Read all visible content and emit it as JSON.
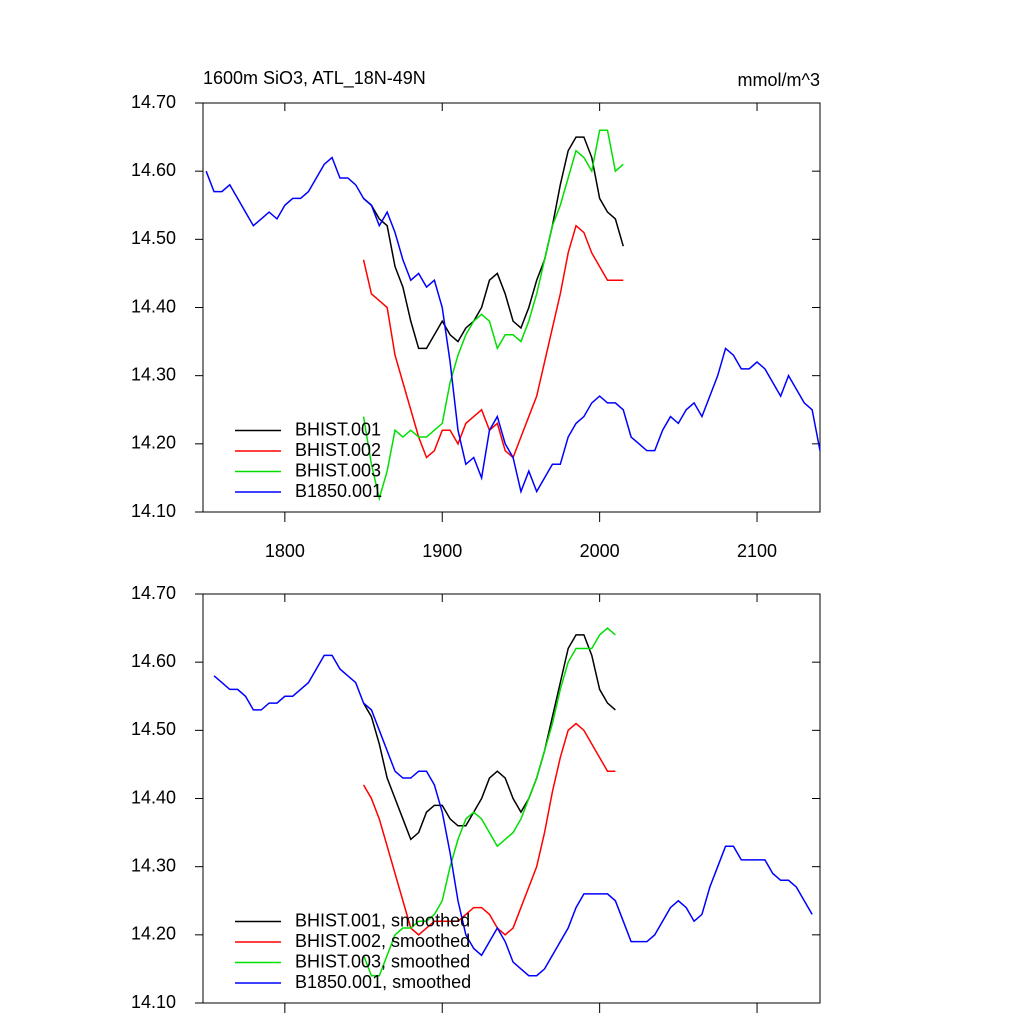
{
  "chart_data": [
    {
      "type": "line",
      "title": "1600m SiO3, ATL_18N-49N",
      "units": "mmol/m^3",
      "x": [
        1750,
        1755,
        1760,
        1765,
        1770,
        1775,
        1780,
        1785,
        1790,
        1795,
        1800,
        1805,
        1810,
        1815,
        1820,
        1825,
        1830,
        1835,
        1840,
        1845,
        1850,
        1855,
        1860,
        1865,
        1870,
        1875,
        1880,
        1885,
        1890,
        1895,
        1900,
        1905,
        1910,
        1915,
        1920,
        1925,
        1930,
        1935,
        1940,
        1945,
        1950,
        1955,
        1960,
        1965,
        1970,
        1975,
        1980,
        1985,
        1990,
        1995,
        2000,
        2005,
        2010,
        2015,
        2020,
        2025,
        2030,
        2035,
        2040,
        2045,
        2050,
        2055,
        2060,
        2065,
        2070,
        2075,
        2080,
        2085,
        2090,
        2095,
        2100,
        2105,
        2110,
        2115,
        2120,
        2125,
        2130,
        2135,
        2140
      ],
      "xlim": [
        1748,
        2140
      ],
      "xticks": [
        1800,
        1900,
        2000,
        2100
      ],
      "ylim": [
        14.1,
        14.7
      ],
      "yticks": [
        {
          "value": 14.1,
          "label": "14.10"
        },
        {
          "value": 14.2,
          "label": "14.20"
        },
        {
          "value": 14.3,
          "label": "14.30"
        },
        {
          "value": 14.4,
          "label": "14.40"
        },
        {
          "value": 14.5,
          "label": "14.50"
        },
        {
          "value": 14.6,
          "label": "14.60"
        },
        {
          "value": 14.7,
          "label": "14.70"
        }
      ],
      "legend": "lower left",
      "series": [
        {
          "name": "BHIST.001",
          "color": "#000000",
          "values": [
            null,
            null,
            null,
            null,
            null,
            null,
            null,
            null,
            null,
            null,
            null,
            null,
            null,
            null,
            null,
            null,
            null,
            null,
            null,
            null,
            14.56,
            14.55,
            14.53,
            14.52,
            14.46,
            14.43,
            14.38,
            14.34,
            14.34,
            14.36,
            14.38,
            14.36,
            14.35,
            14.37,
            14.38,
            14.4,
            14.44,
            14.45,
            14.42,
            14.38,
            14.37,
            14.4,
            14.44,
            14.47,
            14.52,
            14.58,
            14.63,
            14.65,
            14.65,
            14.62,
            14.56,
            14.54,
            14.53,
            14.49,
            null,
            null,
            null,
            null,
            null,
            null,
            null,
            null,
            null,
            null,
            null,
            null,
            null,
            null,
            null,
            null,
            null,
            null,
            null,
            null,
            null,
            null,
            null,
            null,
            null
          ]
        },
        {
          "name": "BHIST.002",
          "color": "#ff0000",
          "values": [
            null,
            null,
            null,
            null,
            null,
            null,
            null,
            null,
            null,
            null,
            null,
            null,
            null,
            null,
            null,
            null,
            null,
            null,
            null,
            null,
            14.47,
            14.42,
            14.41,
            14.4,
            14.33,
            14.29,
            14.25,
            14.21,
            14.18,
            14.19,
            14.22,
            14.22,
            14.2,
            14.23,
            14.24,
            14.25,
            14.22,
            14.23,
            14.19,
            14.18,
            14.21,
            14.24,
            14.27,
            14.32,
            14.37,
            14.42,
            14.48,
            14.52,
            14.51,
            14.48,
            14.46,
            14.44,
            14.44,
            14.44,
            null,
            null,
            null,
            null,
            null,
            null,
            null,
            null,
            null,
            null,
            null,
            null,
            null,
            null,
            null,
            null,
            null,
            null,
            null,
            null,
            null,
            null,
            null,
            null,
            null
          ]
        },
        {
          "name": "BHIST.003",
          "color": "#00e000",
          "values": [
            null,
            null,
            null,
            null,
            null,
            null,
            null,
            null,
            null,
            null,
            null,
            null,
            null,
            null,
            null,
            null,
            null,
            null,
            null,
            null,
            14.24,
            14.17,
            14.12,
            14.16,
            14.22,
            14.21,
            14.22,
            14.21,
            14.21,
            14.22,
            14.23,
            14.29,
            14.33,
            14.36,
            14.38,
            14.39,
            14.38,
            14.34,
            14.36,
            14.36,
            14.35,
            14.38,
            14.42,
            14.47,
            14.52,
            14.55,
            14.59,
            14.63,
            14.62,
            14.6,
            14.66,
            14.66,
            14.6,
            14.61,
            null,
            null,
            null,
            null,
            null,
            null,
            null,
            null,
            null,
            null,
            null,
            null,
            null,
            null,
            null,
            null,
            null,
            null,
            null,
            null,
            null,
            null,
            null,
            null,
            null
          ]
        },
        {
          "name": "B1850.001",
          "color": "#0000ff",
          "values": [
            14.6,
            14.57,
            14.57,
            14.58,
            14.56,
            14.54,
            14.52,
            14.53,
            14.54,
            14.53,
            14.55,
            14.56,
            14.56,
            14.57,
            14.59,
            14.61,
            14.62,
            14.59,
            14.59,
            14.58,
            14.56,
            14.55,
            14.52,
            14.54,
            14.51,
            14.47,
            14.44,
            14.45,
            14.43,
            14.44,
            14.4,
            14.32,
            14.22,
            14.17,
            14.18,
            14.15,
            14.22,
            14.24,
            14.2,
            14.18,
            14.13,
            14.16,
            14.13,
            14.15,
            14.17,
            14.17,
            14.21,
            14.23,
            14.24,
            14.26,
            14.27,
            14.26,
            14.26,
            14.25,
            14.21,
            14.2,
            14.19,
            14.19,
            14.22,
            14.24,
            14.23,
            14.25,
            14.26,
            14.24,
            14.27,
            14.3,
            14.34,
            14.33,
            14.31,
            14.31,
            14.32,
            14.31,
            14.29,
            14.27,
            14.3,
            14.28,
            14.26,
            14.25,
            14.19
          ]
        }
      ]
    },
    {
      "type": "line",
      "x": [
        1750,
        1755,
        1760,
        1765,
        1770,
        1775,
        1780,
        1785,
        1790,
        1795,
        1800,
        1805,
        1810,
        1815,
        1820,
        1825,
        1830,
        1835,
        1840,
        1845,
        1850,
        1855,
        1860,
        1865,
        1870,
        1875,
        1880,
        1885,
        1890,
        1895,
        1900,
        1905,
        1910,
        1915,
        1920,
        1925,
        1930,
        1935,
        1940,
        1945,
        1950,
        1955,
        1960,
        1965,
        1970,
        1975,
        1980,
        1985,
        1990,
        1995,
        2000,
        2005,
        2010,
        2015,
        2020,
        2025,
        2030,
        2035,
        2040,
        2045,
        2050,
        2055,
        2060,
        2065,
        2070,
        2075,
        2080,
        2085,
        2090,
        2095,
        2100,
        2105,
        2110,
        2115,
        2120,
        2125,
        2130,
        2135,
        2140
      ],
      "xlim": [
        1748,
        2140
      ],
      "xticks": [
        1800,
        1900,
        2000,
        2100
      ],
      "ylim": [
        14.1,
        14.7
      ],
      "yticks": [
        {
          "value": 14.1,
          "label": "14.10"
        },
        {
          "value": 14.2,
          "label": "14.20"
        },
        {
          "value": 14.3,
          "label": "14.30"
        },
        {
          "value": 14.4,
          "label": "14.40"
        },
        {
          "value": 14.5,
          "label": "14.50"
        },
        {
          "value": 14.6,
          "label": "14.60"
        },
        {
          "value": 14.7,
          "label": "14.70"
        }
      ],
      "legend": "lower left",
      "series": [
        {
          "name": "BHIST.001, smoothed",
          "color": "#000000",
          "values": [
            null,
            null,
            null,
            null,
            null,
            null,
            null,
            null,
            null,
            null,
            null,
            null,
            null,
            null,
            null,
            null,
            null,
            null,
            null,
            null,
            14.54,
            14.52,
            14.48,
            14.43,
            14.4,
            14.37,
            14.34,
            14.35,
            14.38,
            14.39,
            14.39,
            14.37,
            14.36,
            14.36,
            14.38,
            14.4,
            14.43,
            14.44,
            14.43,
            14.4,
            14.38,
            14.4,
            14.43,
            14.47,
            14.52,
            14.57,
            14.62,
            14.64,
            14.64,
            14.61,
            14.56,
            14.54,
            14.53,
            null,
            null,
            null,
            null,
            null,
            null,
            null,
            null,
            null,
            null,
            null,
            null,
            null,
            null,
            null,
            null,
            null,
            null,
            null,
            null,
            null,
            null,
            null,
            null,
            null,
            null
          ]
        },
        {
          "name": "BHIST.002, smoothed",
          "color": "#ff0000",
          "values": [
            null,
            null,
            null,
            null,
            null,
            null,
            null,
            null,
            null,
            null,
            null,
            null,
            null,
            null,
            null,
            null,
            null,
            null,
            null,
            null,
            14.42,
            14.4,
            14.37,
            14.33,
            14.29,
            14.25,
            14.21,
            14.2,
            14.21,
            14.22,
            14.22,
            14.22,
            14.22,
            14.23,
            14.24,
            14.24,
            14.23,
            14.21,
            14.2,
            14.21,
            14.24,
            14.27,
            14.3,
            14.35,
            14.41,
            14.46,
            14.5,
            14.51,
            14.5,
            14.48,
            14.46,
            14.44,
            14.44,
            null,
            null,
            null,
            null,
            null,
            null,
            null,
            null,
            null,
            null,
            null,
            null,
            null,
            null,
            null,
            null,
            null,
            null,
            null,
            null,
            null,
            null,
            null,
            null,
            null,
            null
          ]
        },
        {
          "name": "BHIST.003, smoothed",
          "color": "#00e000",
          "values": [
            null,
            null,
            null,
            null,
            null,
            null,
            null,
            null,
            null,
            null,
            null,
            null,
            null,
            null,
            null,
            null,
            null,
            null,
            null,
            null,
            14.17,
            14.14,
            14.14,
            14.17,
            14.2,
            14.21,
            14.21,
            14.22,
            14.22,
            14.23,
            14.25,
            14.3,
            14.34,
            14.37,
            14.38,
            14.37,
            14.35,
            14.33,
            14.34,
            14.35,
            14.37,
            14.4,
            14.43,
            14.47,
            14.51,
            14.56,
            14.6,
            14.62,
            14.62,
            14.62,
            14.64,
            14.65,
            14.64,
            null,
            null,
            null,
            null,
            null,
            null,
            null,
            null,
            null,
            null,
            null,
            null,
            null,
            null,
            null,
            null,
            null,
            null,
            null,
            null,
            null,
            null,
            null,
            null,
            null,
            null
          ]
        },
        {
          "name": "B1850.001, smoothed",
          "color": "#0000ff",
          "values": [
            null,
            14.58,
            14.57,
            14.56,
            14.56,
            14.55,
            14.53,
            14.53,
            14.54,
            14.54,
            14.55,
            14.55,
            14.56,
            14.57,
            14.59,
            14.61,
            14.61,
            14.59,
            14.58,
            14.57,
            14.54,
            14.53,
            14.5,
            14.47,
            14.44,
            14.43,
            14.43,
            14.44,
            14.44,
            14.42,
            14.38,
            14.32,
            14.25,
            14.2,
            14.18,
            14.17,
            14.19,
            14.21,
            14.19,
            14.16,
            14.15,
            14.14,
            14.14,
            14.15,
            14.17,
            14.19,
            14.21,
            14.24,
            14.26,
            14.26,
            14.26,
            14.26,
            14.25,
            14.22,
            14.19,
            14.19,
            14.19,
            14.2,
            14.22,
            14.24,
            14.25,
            14.24,
            14.22,
            14.23,
            14.27,
            14.3,
            14.33,
            14.33,
            14.31,
            14.31,
            14.31,
            14.31,
            14.29,
            14.28,
            14.28,
            14.27,
            14.25,
            14.23,
            null
          ]
        }
      ]
    }
  ]
}
